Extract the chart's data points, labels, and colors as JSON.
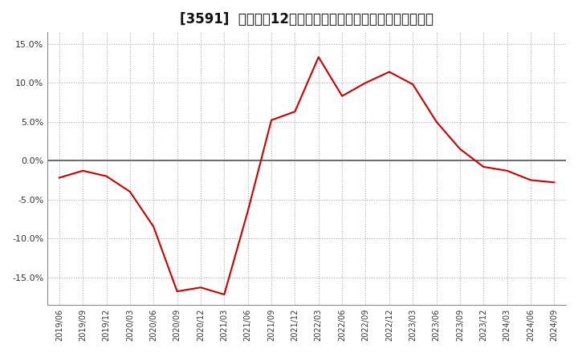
{
  "title": "[3591]  売上高の12か月移動合計の対前年同期増減率の推移",
  "line_color": "#cc0000",
  "background_color": "#ffffff",
  "plot_background_color": "#ffffff",
  "grid_color": "#aaaaaa",
  "zero_line_color": "#555555",
  "ylim": [
    -0.185,
    0.165
  ],
  "yticks": [
    -0.15,
    -0.1,
    -0.05,
    0.0,
    0.05,
    0.1,
    0.15
  ],
  "dates": [
    "2019/06",
    "2019/09",
    "2019/12",
    "2020/03",
    "2020/06",
    "2020/09",
    "2020/12",
    "2021/03",
    "2021/06",
    "2021/09",
    "2021/12",
    "2022/03",
    "2022/06",
    "2022/09",
    "2022/12",
    "2023/03",
    "2023/06",
    "2023/09",
    "2023/12",
    "2024/03",
    "2024/06",
    "2024/09"
  ],
  "values": [
    -0.022,
    -0.013,
    -0.02,
    -0.04,
    -0.085,
    -0.168,
    -0.163,
    -0.172,
    -0.065,
    0.052,
    0.063,
    0.133,
    0.083,
    0.1,
    0.114,
    0.098,
    0.05,
    0.015,
    -0.008,
    -0.013,
    -0.025,
    -0.028
  ],
  "title_fontsize": 12,
  "tick_fontsize": 8,
  "xtick_fontsize": 7
}
